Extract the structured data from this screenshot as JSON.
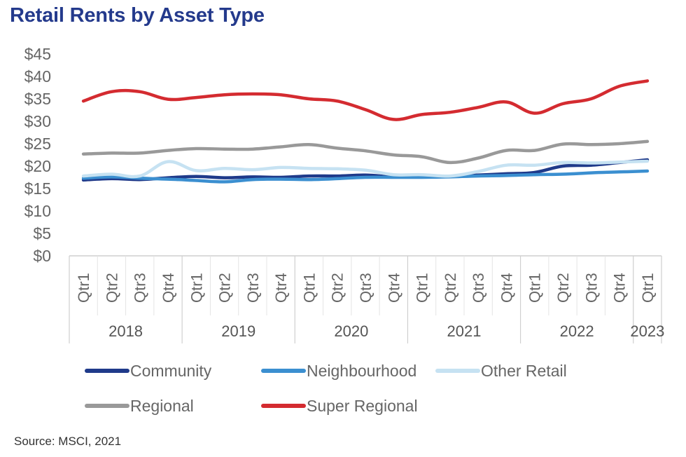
{
  "title": "Retail Rents by Asset Type",
  "source": "Source: MSCI, 2021",
  "chart_data": {
    "type": "line",
    "title": "Retail Rents by Asset Type",
    "xlabel": "",
    "ylabel": "",
    "ylim": [
      0,
      45
    ],
    "y_ticks": [
      "$0",
      "$5",
      "$10",
      "$15",
      "$20",
      "$25",
      "$30",
      "$35",
      "$40",
      "$45"
    ],
    "y_tick_values": [
      0,
      5,
      10,
      15,
      20,
      25,
      30,
      35,
      40,
      45
    ],
    "categories": [
      "Qtr1",
      "Qtr2",
      "Qtr3",
      "Qtr4",
      "Qtr1",
      "Qtr2",
      "Qtr3",
      "Qtr4",
      "Qtr1",
      "Qtr2",
      "Qtr3",
      "Qtr4",
      "Qtr1",
      "Qtr2",
      "Qtr3",
      "Qtr4",
      "Qtr1",
      "Qtr2",
      "Qtr3",
      "Qtr4",
      "Qtr1"
    ],
    "year_groups": [
      {
        "label": "2018",
        "count": 4
      },
      {
        "label": "2019",
        "count": 4
      },
      {
        "label": "2020",
        "count": 4
      },
      {
        "label": "2021",
        "count": 4
      },
      {
        "label": "2022",
        "count": 4
      },
      {
        "label": "2023",
        "count": 1
      }
    ],
    "grid": false,
    "legend_position": "bottom",
    "series": [
      {
        "name": "Community",
        "color": "#1f3a8a",
        "values": [
          16.9,
          17.2,
          17.0,
          17.4,
          17.7,
          17.4,
          17.6,
          17.5,
          17.8,
          17.8,
          18.0,
          17.6,
          17.6,
          17.7,
          18.0,
          18.3,
          18.6,
          20.0,
          20.2,
          20.8,
          21.4
        ]
      },
      {
        "name": "Neighbourhood",
        "color": "#3b8fd0",
        "values": [
          17.3,
          17.6,
          17.3,
          17.1,
          16.8,
          16.5,
          17.0,
          17.1,
          17.0,
          17.2,
          17.5,
          17.5,
          17.5,
          17.6,
          17.8,
          17.9,
          18.1,
          18.2,
          18.5,
          18.7,
          18.9
        ]
      },
      {
        "name": "Other Retail",
        "color": "#c6e2f2",
        "values": [
          17.8,
          18.2,
          17.8,
          21.0,
          19.0,
          19.5,
          19.2,
          19.7,
          19.5,
          19.4,
          19.1,
          18.1,
          18.1,
          17.8,
          18.8,
          20.2,
          20.2,
          20.8,
          20.7,
          20.9,
          21.1
        ]
      },
      {
        "name": "Regional",
        "color": "#999999",
        "values": [
          22.7,
          22.9,
          22.9,
          23.5,
          23.9,
          23.8,
          23.8,
          24.3,
          24.8,
          24.0,
          23.4,
          22.5,
          22.1,
          20.8,
          21.8,
          23.5,
          23.5,
          24.9,
          24.8,
          25.0,
          25.5
        ]
      },
      {
        "name": "Super Regional",
        "color": "#d42b30",
        "values": [
          34.5,
          36.6,
          36.6,
          34.9,
          35.3,
          35.9,
          36.1,
          35.9,
          35.0,
          34.5,
          32.6,
          30.4,
          31.5,
          32.0,
          33.1,
          34.3,
          31.8,
          33.9,
          35.0,
          37.8,
          39.0
        ]
      }
    ]
  }
}
